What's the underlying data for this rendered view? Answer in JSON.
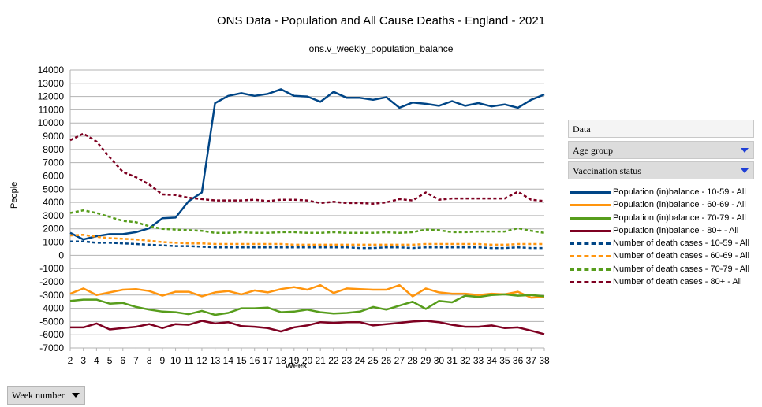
{
  "chart_data": {
    "type": "line",
    "title": "ONS Data - Population and All Cause Deaths - England - 2021",
    "subtitle": "ons.v_weekly_population_balance",
    "xlabel": "Week",
    "ylabel": "People",
    "ylim": [
      -7000,
      14000
    ],
    "yticks": [
      14000,
      13000,
      12000,
      11000,
      10000,
      9000,
      8000,
      7000,
      6000,
      5000,
      4000,
      3000,
      2000,
      1000,
      0,
      -1000,
      -2000,
      -3000,
      -4000,
      -5000,
      -6000,
      -7000
    ],
    "x": [
      2,
      3,
      4,
      5,
      6,
      7,
      8,
      9,
      10,
      11,
      12,
      13,
      14,
      15,
      16,
      17,
      18,
      19,
      20,
      21,
      22,
      23,
      24,
      25,
      26,
      27,
      28,
      29,
      30,
      31,
      32,
      33,
      34,
      35,
      36,
      37,
      38
    ],
    "grid": "horizontal",
    "legend_position": "right",
    "series": [
      {
        "name": "Population (in)balance - 10-59 - All",
        "color": "#004586",
        "style": "solid",
        "values": [
          1700,
          1200,
          1450,
          1600,
          1600,
          1750,
          2050,
          2800,
          2850,
          4100,
          4750,
          11500,
          12050,
          12250,
          12050,
          12200,
          12550,
          12050,
          12000,
          11600,
          12350,
          11900,
          11900,
          11750,
          11950,
          11150,
          11550,
          11450,
          11300,
          11650,
          11300,
          11500,
          11250,
          11400,
          11150,
          11750,
          12150
        ]
      },
      {
        "name": "Population (in)balance - 60-69 - All",
        "color": "#ff950e",
        "style": "solid",
        "values": [
          -2900,
          -2500,
          -3000,
          -2800,
          -2600,
          -2550,
          -2700,
          -3050,
          -2750,
          -2750,
          -3100,
          -2800,
          -2700,
          -2950,
          -2650,
          -2800,
          -2550,
          -2400,
          -2600,
          -2250,
          -2850,
          -2500,
          -2550,
          -2600,
          -2600,
          -2250,
          -3100,
          -2500,
          -2800,
          -2900,
          -2900,
          -3000,
          -2900,
          -2950,
          -2750,
          -3200,
          -3150
        ]
      },
      {
        "name": "Population (in)balance - 70-79 - All",
        "color": "#579d1c",
        "style": "solid",
        "values": [
          -3450,
          -3350,
          -3350,
          -3650,
          -3600,
          -3900,
          -4100,
          -4250,
          -4300,
          -4450,
          -4200,
          -4500,
          -4350,
          -4000,
          -4000,
          -3950,
          -4300,
          -4250,
          -4100,
          -4300,
          -4400,
          -4350,
          -4250,
          -3900,
          -4100,
          -3800,
          -3500,
          -4050,
          -3450,
          -3550,
          -3050,
          -3150,
          -3000,
          -2950,
          -3050,
          -3000,
          -3100
        ]
      },
      {
        "name": "Population (in)balance - 80+ - All",
        "color": "#7e0021",
        "style": "solid",
        "values": [
          -5450,
          -5450,
          -5150,
          -5600,
          -5500,
          -5400,
          -5200,
          -5500,
          -5200,
          -5250,
          -4950,
          -5150,
          -5050,
          -5350,
          -5400,
          -5500,
          -5750,
          -5450,
          -5300,
          -5050,
          -5100,
          -5050,
          -5050,
          -5300,
          -5200,
          -5100,
          -5000,
          -4950,
          -5050,
          -5250,
          -5400,
          -5400,
          -5300,
          -5500,
          -5450,
          -5700,
          -5950
        ]
      },
      {
        "name": "Number of death cases - 10-59 - All",
        "color": "#004586",
        "style": "dashed",
        "values": [
          1050,
          1050,
          950,
          950,
          900,
          850,
          800,
          750,
          700,
          700,
          650,
          600,
          600,
          600,
          600,
          600,
          600,
          600,
          600,
          600,
          600,
          600,
          550,
          550,
          600,
          600,
          550,
          600,
          600,
          600,
          600,
          600,
          550,
          550,
          600,
          550,
          550
        ]
      },
      {
        "name": "Number of death cases - 60-69 - All",
        "color": "#ff950e",
        "style": "dashed",
        "values": [
          1500,
          1550,
          1400,
          1300,
          1250,
          1200,
          1100,
          1000,
          950,
          900,
          900,
          850,
          850,
          850,
          850,
          850,
          850,
          800,
          800,
          800,
          800,
          800,
          800,
          800,
          800,
          800,
          800,
          850,
          850,
          850,
          850,
          850,
          800,
          800,
          850,
          850,
          850
        ]
      },
      {
        "name": "Number of death cases - 70-79 - All",
        "color": "#579d1c",
        "style": "dashed",
        "values": [
          3200,
          3400,
          3200,
          2900,
          2600,
          2500,
          2200,
          2000,
          1950,
          1900,
          1850,
          1700,
          1700,
          1750,
          1700,
          1700,
          1750,
          1750,
          1700,
          1700,
          1750,
          1700,
          1700,
          1700,
          1750,
          1700,
          1750,
          1950,
          1900,
          1750,
          1750,
          1800,
          1800,
          1800,
          2050,
          1850,
          1700
        ]
      },
      {
        "name": "Number of death cases - 80+ - All",
        "color": "#7e0021",
        "style": "dashed",
        "values": [
          8700,
          9200,
          8600,
          7400,
          6300,
          5900,
          5350,
          4600,
          4550,
          4350,
          4250,
          4150,
          4150,
          4150,
          4200,
          4100,
          4200,
          4200,
          4150,
          3950,
          4050,
          3950,
          3950,
          3900,
          4000,
          4250,
          4150,
          4750,
          4200,
          4300,
          4300,
          4300,
          4300,
          4300,
          4800,
          4200,
          4100
        ]
      }
    ]
  },
  "panel": {
    "data_label": "Data",
    "age_group_label": "Age group",
    "vaccination_label": "Vaccination status"
  },
  "week_dropdown": {
    "label": "Week number"
  }
}
